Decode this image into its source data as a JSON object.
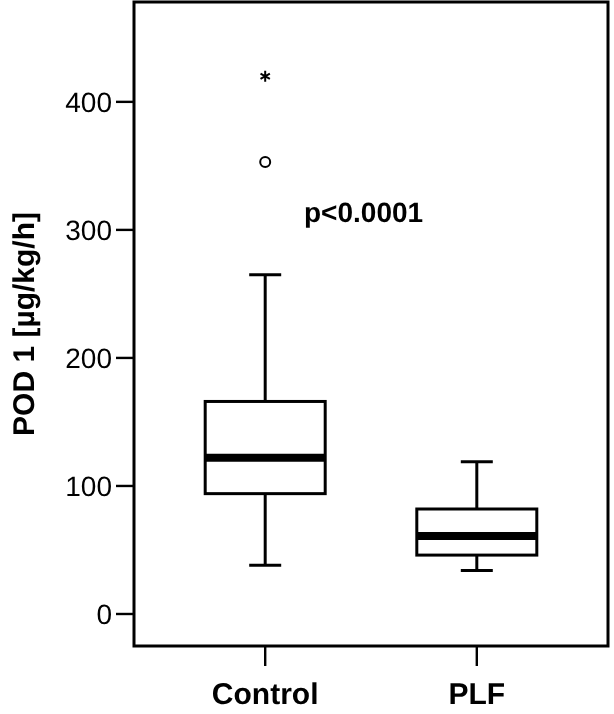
{
  "chart_data": {
    "type": "box",
    "ylabel": "POD 1 [µg/kg/h]",
    "categories": [
      "Control",
      "PLF"
    ],
    "boxes": [
      {
        "low": 38,
        "q1": 94,
        "median": 122,
        "q3": 166,
        "high": 265,
        "outliers": [
          353,
          420
        ]
      },
      {
        "low": 34,
        "q1": 46,
        "median": 61,
        "q3": 82,
        "high": 119
      }
    ],
    "ylim": [
      -25,
      478
    ],
    "yticks": [
      0,
      100,
      200,
      300,
      400
    ],
    "grid": false,
    "annotations": [
      "p<0.0001"
    ]
  }
}
